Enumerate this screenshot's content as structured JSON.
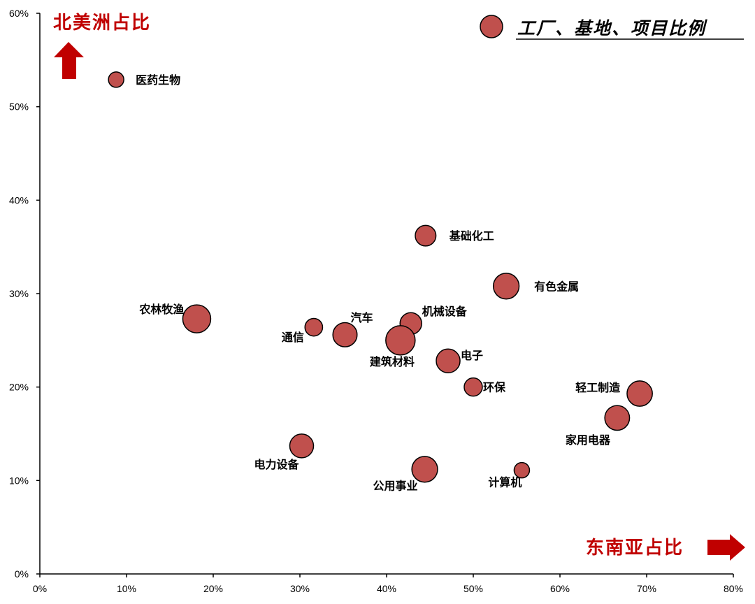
{
  "chart_data": {
    "type": "scatter",
    "title": "",
    "x_axis_title": "东南亚占比",
    "y_axis_title": "北美洲占比",
    "legend_label": "工厂、基地、项目比例",
    "xlim": [
      0,
      0.8
    ],
    "ylim": [
      0,
      0.6
    ],
    "x_ticks": [
      "0%",
      "10%",
      "20%",
      "30%",
      "40%",
      "50%",
      "60%",
      "70%",
      "80%"
    ],
    "y_ticks": [
      "0%",
      "10%",
      "20%",
      "30%",
      "40%",
      "50%",
      "60%"
    ],
    "grid": false,
    "legend_position": "top-right",
    "marker_color": "#c0504d",
    "accent_color": "#c00000",
    "points": [
      {
        "label": "医药生物",
        "x": 0.088,
        "y": 0.529,
        "size": 0.3
      },
      {
        "label": "基础化工",
        "x": 0.445,
        "y": 0.362,
        "size": 0.55
      },
      {
        "label": "有色金属",
        "x": 0.538,
        "y": 0.308,
        "size": 0.85
      },
      {
        "label": "农林牧渔",
        "x": 0.181,
        "y": 0.273,
        "size": 1.0
      },
      {
        "label": "通信",
        "x": 0.316,
        "y": 0.264,
        "size": 0.4
      },
      {
        "label": "汽车",
        "x": 0.352,
        "y": 0.256,
        "size": 0.75
      },
      {
        "label": "机械设备",
        "x": 0.428,
        "y": 0.268,
        "size": 0.6
      },
      {
        "label": "建筑材料",
        "x": 0.416,
        "y": 0.25,
        "size": 1.1
      },
      {
        "label": "电子",
        "x": 0.471,
        "y": 0.228,
        "size": 0.72
      },
      {
        "label": "环保",
        "x": 0.5,
        "y": 0.2,
        "size": 0.42
      },
      {
        "label": "轻工制造",
        "x": 0.692,
        "y": 0.193,
        "size": 0.82
      },
      {
        "label": "家用电器",
        "x": 0.666,
        "y": 0.167,
        "size": 0.78
      },
      {
        "label": "电力设备",
        "x": 0.302,
        "y": 0.137,
        "size": 0.72
      },
      {
        "label": "公用事业",
        "x": 0.444,
        "y": 0.112,
        "size": 0.85
      },
      {
        "label": "计算机",
        "x": 0.556,
        "y": 0.111,
        "size": 0.3
      }
    ]
  }
}
